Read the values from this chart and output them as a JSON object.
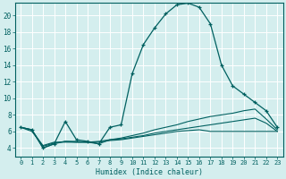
{
  "xlabel": "Humidex (Indice chaleur)",
  "xlim": [
    -0.5,
    23.5
  ],
  "ylim": [
    3.0,
    21.5
  ],
  "yticks": [
    4,
    6,
    8,
    10,
    12,
    14,
    16,
    18,
    20
  ],
  "xticks": [
    0,
    1,
    2,
    3,
    4,
    5,
    6,
    7,
    8,
    9,
    10,
    11,
    12,
    13,
    14,
    15,
    16,
    17,
    18,
    19,
    20,
    21,
    22,
    23
  ],
  "background_color": "#d4eeee",
  "grid_color": "#b8d8d8",
  "line_color": "#006060",
  "series_main": [
    6.5,
    6.2,
    4.0,
    4.5,
    7.2,
    5.0,
    4.8,
    4.5,
    6.5,
    6.8,
    13.0,
    16.5,
    18.5,
    20.2,
    21.3,
    21.5,
    21.0,
    19.0,
    14.0,
    11.5,
    10.5,
    9.5,
    8.5,
    6.5
  ],
  "series2": [
    6.5,
    6.2,
    4.0,
    4.5,
    4.8,
    4.8,
    4.7,
    4.5,
    5.0,
    5.2,
    5.5,
    5.8,
    6.2,
    6.5,
    6.8,
    7.2,
    7.5,
    7.8,
    8.0,
    8.2,
    8.5,
    8.7,
    7.5,
    6.2
  ],
  "series3": [
    6.5,
    6.2,
    4.2,
    4.6,
    4.8,
    4.7,
    4.7,
    4.8,
    5.0,
    5.1,
    5.3,
    5.5,
    5.8,
    6.0,
    6.2,
    6.4,
    6.6,
    6.8,
    7.0,
    7.2,
    7.4,
    7.6,
    7.0,
    6.0
  ],
  "series4": [
    6.5,
    6.0,
    4.3,
    4.7,
    4.7,
    4.7,
    4.7,
    4.7,
    4.9,
    5.0,
    5.2,
    5.4,
    5.6,
    5.8,
    6.0,
    6.1,
    6.2,
    6.0,
    6.0,
    6.0,
    6.0,
    6.0,
    6.0,
    6.0
  ]
}
